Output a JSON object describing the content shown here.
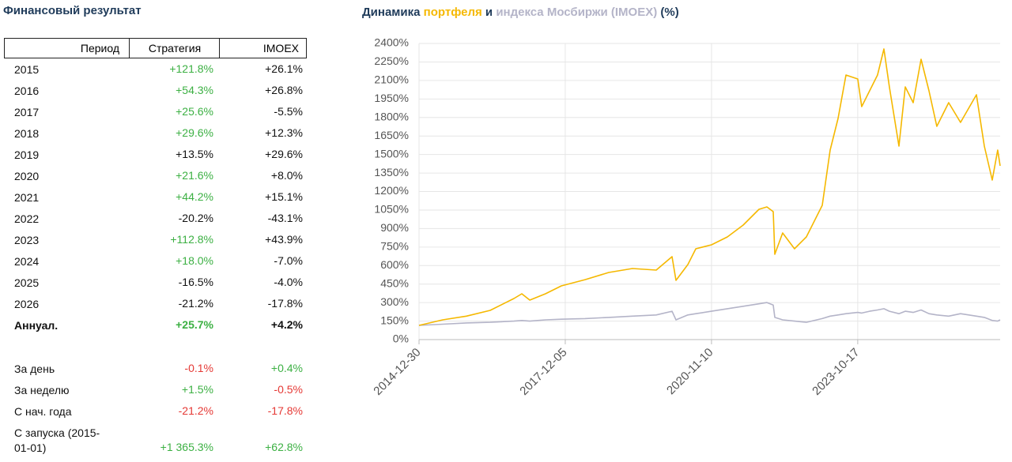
{
  "table": {
    "title": "Финансовый результат",
    "header": [
      "Период",
      "Стратегия",
      "IMOEX"
    ],
    "rows": [
      {
        "period": "2015",
        "strategy": "+121.8%",
        "imoex": "+26.1%",
        "strategy_color": "#3cb043",
        "imoex_color": "#111111"
      },
      {
        "period": "2016",
        "strategy": "+54.3%",
        "imoex": "+26.8%",
        "strategy_color": "#3cb043",
        "imoex_color": "#111111"
      },
      {
        "period": "2017",
        "strategy": "+25.6%",
        "imoex": "-5.5%",
        "strategy_color": "#3cb043",
        "imoex_color": "#111111"
      },
      {
        "period": "2018",
        "strategy": "+29.6%",
        "imoex": "+12.3%",
        "strategy_color": "#3cb043",
        "imoex_color": "#111111"
      },
      {
        "period": "2019",
        "strategy": "+13.5%",
        "imoex": "+29.6%",
        "strategy_color": "#111111",
        "imoex_color": "#111111"
      },
      {
        "period": "2020",
        "strategy": "+21.6%",
        "imoex": "+8.0%",
        "strategy_color": "#3cb043",
        "imoex_color": "#111111"
      },
      {
        "period": "2021",
        "strategy": "+44.2%",
        "imoex": "+15.1%",
        "strategy_color": "#3cb043",
        "imoex_color": "#111111"
      },
      {
        "period": "2022",
        "strategy": "-20.2%",
        "imoex": "-43.1%",
        "strategy_color": "#111111",
        "imoex_color": "#111111"
      },
      {
        "period": "2023",
        "strategy": "+112.8%",
        "imoex": "+43.9%",
        "strategy_color": "#3cb043",
        "imoex_color": "#111111"
      },
      {
        "period": "2024",
        "strategy": "+18.0%",
        "imoex": "-7.0%",
        "strategy_color": "#3cb043",
        "imoex_color": "#111111"
      },
      {
        "period": "2025",
        "strategy": "-16.5%",
        "imoex": "-4.0%",
        "strategy_color": "#111111",
        "imoex_color": "#111111"
      },
      {
        "period": "2026",
        "strategy": "-21.2%",
        "imoex": "-17.8%",
        "strategy_color": "#111111",
        "imoex_color": "#111111"
      },
      {
        "period": "Аннуал.",
        "strategy": "+25.7%",
        "imoex": "+4.2%",
        "strategy_color": "#3cb043",
        "imoex_color": "#111111",
        "bold": true
      }
    ],
    "summary": [
      {
        "period": "За день",
        "strategy": "-0.1%",
        "imoex": "+0.4%",
        "strategy_color": "#e53935",
        "imoex_color": "#3cb043"
      },
      {
        "period": "За неделю",
        "strategy": "+1.5%",
        "imoex": "-0.5%",
        "strategy_color": "#3cb043",
        "imoex_color": "#e53935"
      },
      {
        "period": "С нач. года",
        "strategy": "-21.2%",
        "imoex": "-17.8%",
        "strategy_color": "#e53935",
        "imoex_color": "#e53935"
      },
      {
        "period": "С запуска (2015-01-01)",
        "strategy": "+1 365.3%",
        "imoex": "+62.8%",
        "strategy_color": "#3cb043",
        "imoex_color": "#3cb043"
      }
    ]
  },
  "chart_data": {
    "type": "line",
    "title": {
      "prefix": "Динамика",
      "middle": "и",
      "suffix": "(%)"
    },
    "x": [
      "2014-12-30",
      "2015-06-22",
      "2015-12-12",
      "2016-06-03",
      "2016-11-24",
      "2017-01-21",
      "2017-03-20",
      "2017-07-13",
      "2017-11-06",
      "2018-04-29",
      "2018-10-20",
      "2019-04-11",
      "2019-10-02",
      "2020-01-26",
      "2020-02-24",
      "2020-05-21",
      "2020-07-18",
      "2020-11-10",
      "2021-03-06",
      "2021-06-30",
      "2021-10-24",
      "2021-12-21",
      "2022-02-05",
      "2022-02-17",
      "2022-04-15",
      "2022-07-11",
      "2022-10-06",
      "2023-01-30",
      "2023-03-29",
      "2023-05-26",
      "2023-07-23",
      "2023-10-17",
      "2023-11-15",
      "2024-01-12",
      "2024-03-10",
      "2024-04-26",
      "2024-06-05",
      "2024-08-14",
      "2024-09-29",
      "2024-11-26",
      "2025-01-23",
      "2025-03-22",
      "2025-05-18",
      "2025-08-13",
      "2025-11-08",
      "2026-03-04",
      "2026-05-01",
      "2026-06-28",
      "2026-08-07",
      "2026-08-25"
    ],
    "series": [
      {
        "name": "портфеля",
        "color": "#f5b800",
        "values": [
          115,
          160,
          190,
          237,
          333,
          371,
          320,
          371,
          435,
          486,
          544,
          576,
          563,
          672,
          480,
          608,
          736,
          768,
          832,
          928,
          1056,
          1075,
          1037,
          691,
          864,
          736,
          832,
          1088,
          1536,
          1792,
          2144,
          2112,
          1888,
          2016,
          2144,
          2355,
          2048,
          1568,
          2048,
          1920,
          2272,
          2016,
          1728,
          1920,
          1760,
          1984,
          1568,
          1293,
          1536,
          1408
        ]
      },
      {
        "name": "индекса Мосбиржи (IMOEX)",
        "color": "#b4b4c8",
        "values": [
          115,
          125,
          135,
          140,
          150,
          155,
          150,
          160,
          165,
          170,
          180,
          190,
          200,
          230,
          160,
          200,
          210,
          230,
          250,
          270,
          290,
          300,
          280,
          180,
          160,
          150,
          140,
          170,
          190,
          200,
          210,
          220,
          215,
          230,
          240,
          250,
          230,
          210,
          230,
          220,
          240,
          210,
          200,
          190,
          210,
          190,
          180,
          155,
          150,
          160
        ]
      }
    ],
    "xlim": [
      "2014-12-30",
      "2026-08-25"
    ],
    "xticks": [
      "2014-12-30",
      "2017-12-05",
      "2020-11-10",
      "2023-10-17"
    ],
    "ylim": [
      0,
      2400
    ],
    "yticks": [
      {
        "value": 0,
        "label": "0%"
      },
      {
        "value": 150,
        "label": "150%"
      },
      {
        "value": 300,
        "label": "300%"
      },
      {
        "value": 450,
        "label": "450%"
      },
      {
        "value": 600,
        "label": "600%"
      },
      {
        "value": 750,
        "label": "750%"
      },
      {
        "value": 900,
        "label": "900%"
      },
      {
        "value": 1050,
        "label": "1050%"
      },
      {
        "value": 1200,
        "label": "1200%"
      },
      {
        "value": 1350,
        "label": "1350%"
      },
      {
        "value": 1500,
        "label": "1500%"
      },
      {
        "value": 1650,
        "label": "1650%"
      },
      {
        "value": 1800,
        "label": "1800%"
      },
      {
        "value": 1950,
        "label": "1950%"
      },
      {
        "value": 2100,
        "label": "2100%"
      },
      {
        "value": 2250,
        "label": "2250%"
      },
      {
        "value": 2400,
        "label": "2400%"
      }
    ],
    "grid": true
  }
}
